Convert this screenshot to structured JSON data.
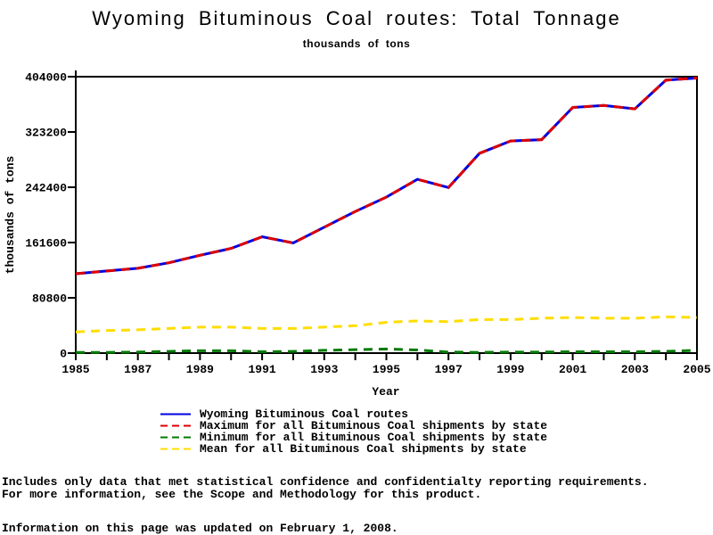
{
  "page": {
    "footer": {
      "note_line1": "Includes only data that met statistical confidence and confidentialty reporting requirements.",
      "note_line2": "For more information, see the Scope and Methodology for this product.",
      "updated_line": "Information on this page was updated on February 1, 2008."
    }
  },
  "chart_data": {
    "type": "line",
    "title": "Wyoming Bituminous Coal routes: Total Tonnage",
    "subtitle": "thousands of tons",
    "xlabel": "Year",
    "ylabel": "thousands of tons",
    "x": [
      1985,
      1986,
      1987,
      1988,
      1989,
      1990,
      1991,
      1992,
      1993,
      1994,
      1995,
      1996,
      1997,
      1998,
      1999,
      2000,
      2001,
      2002,
      2003,
      2004,
      2005
    ],
    "x_tick_labels": [
      1985,
      1987,
      1989,
      1991,
      1993,
      1995,
      1997,
      1999,
      2001,
      2003,
      2005
    ],
    "ylim": [
      0,
      404000
    ],
    "y_ticks": [
      0,
      80800,
      161600,
      242400,
      323200,
      404000
    ],
    "grid": false,
    "legend_position": "below-chart-left",
    "axis_color": "#000000",
    "series": [
      {
        "name": "Wyoming Bituminous Coal routes",
        "color": "#0000E0",
        "style": "solid",
        "values": [
          116000,
          120000,
          124000,
          132000,
          143000,
          153000,
          170000,
          161000,
          184000,
          207000,
          228000,
          254000,
          242000,
          292000,
          310000,
          312000,
          359000,
          362000,
          357000,
          399000,
          402000
        ]
      },
      {
        "name": "Maximum for all Bituminous Coal shipments by state",
        "color": "#DD0000",
        "style": "dashed",
        "values": [
          116000,
          120000,
          124000,
          132000,
          143000,
          153000,
          170000,
          161000,
          184000,
          207000,
          228000,
          254000,
          242000,
          292000,
          310000,
          312000,
          359000,
          362000,
          357000,
          399000,
          402000
        ]
      },
      {
        "name": "Minimum for all Bituminous Coal shipments by state",
        "color": "#007A00",
        "style": "dashed",
        "values": [
          1000,
          1000,
          1500,
          2500,
          3500,
          3500,
          2000,
          2500,
          4000,
          5000,
          6000,
          4500,
          1500,
          1000,
          1500,
          1500,
          2000,
          2000,
          2000,
          2500,
          4000
        ]
      },
      {
        "name": "Mean for all Bituminous Coal shipments by state",
        "color": "#FFDD00",
        "style": "dashed",
        "values": [
          31000,
          33000,
          34000,
          36000,
          38000,
          38000,
          36000,
          36000,
          38000,
          40000,
          45000,
          47000,
          46000,
          49000,
          49000,
          51000,
          52000,
          51000,
          51000,
          53000,
          52000
        ]
      }
    ]
  }
}
